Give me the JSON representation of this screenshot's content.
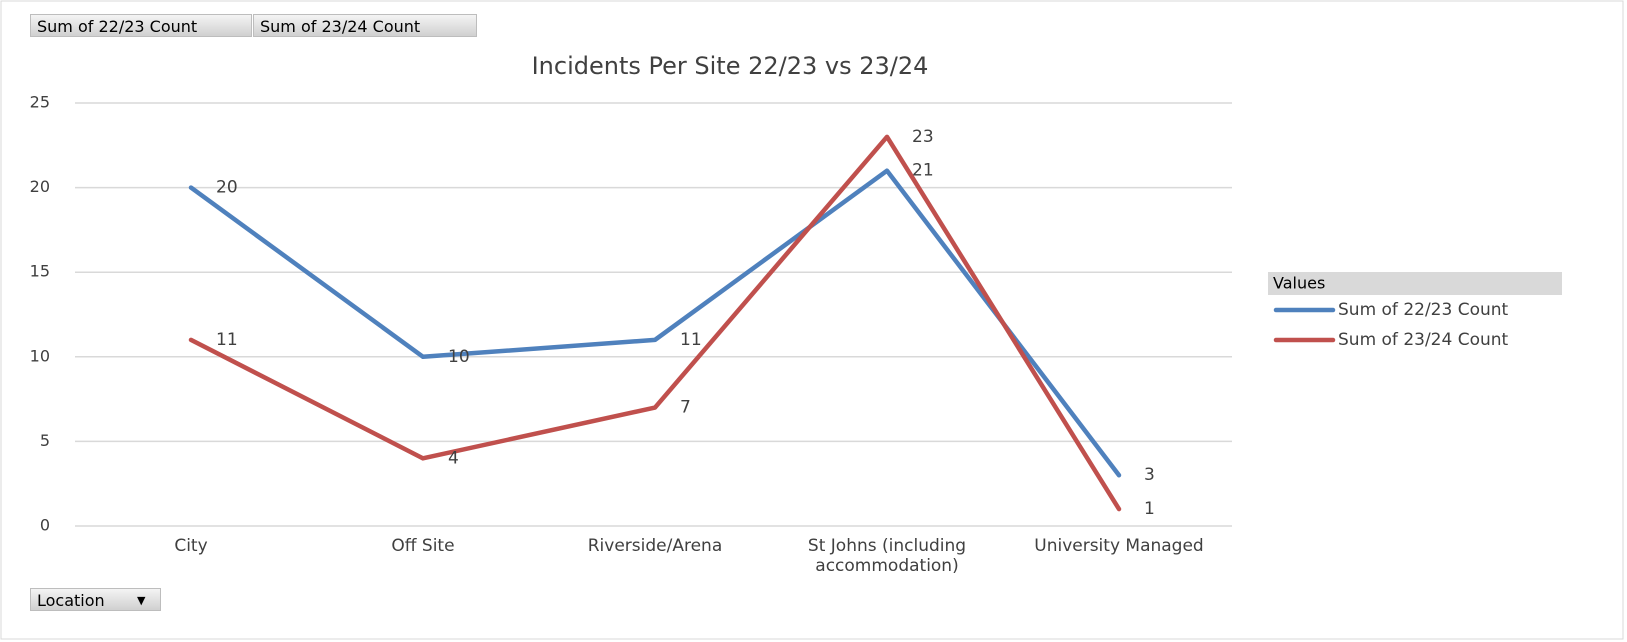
{
  "chart_data": {
    "type": "line",
    "title": "Incidents Per Site 22/23 vs 23/24",
    "field_buttons": [
      "Sum of 22/23 Count",
      "Sum of 23/24 Count"
    ],
    "axis_field_button": "Location",
    "legend_title": "Values",
    "categories": [
      "City",
      "Off Site",
      "Riverside/Arena",
      "St Johns (including accommodation)",
      "University Managed"
    ],
    "series": [
      {
        "name": "Sum of 22/23 Count",
        "color": "#4f81bd",
        "values": [
          20,
          10,
          11,
          21,
          3
        ]
      },
      {
        "name": "Sum of 23/24 Count",
        "color": "#c0504d",
        "values": [
          11,
          4,
          7,
          23,
          1
        ]
      }
    ],
    "ylim": [
      0,
      25
    ],
    "yticks": [
      0,
      5,
      10,
      15,
      20,
      25
    ],
    "grid": true,
    "legend": "right",
    "data_labels": true
  }
}
